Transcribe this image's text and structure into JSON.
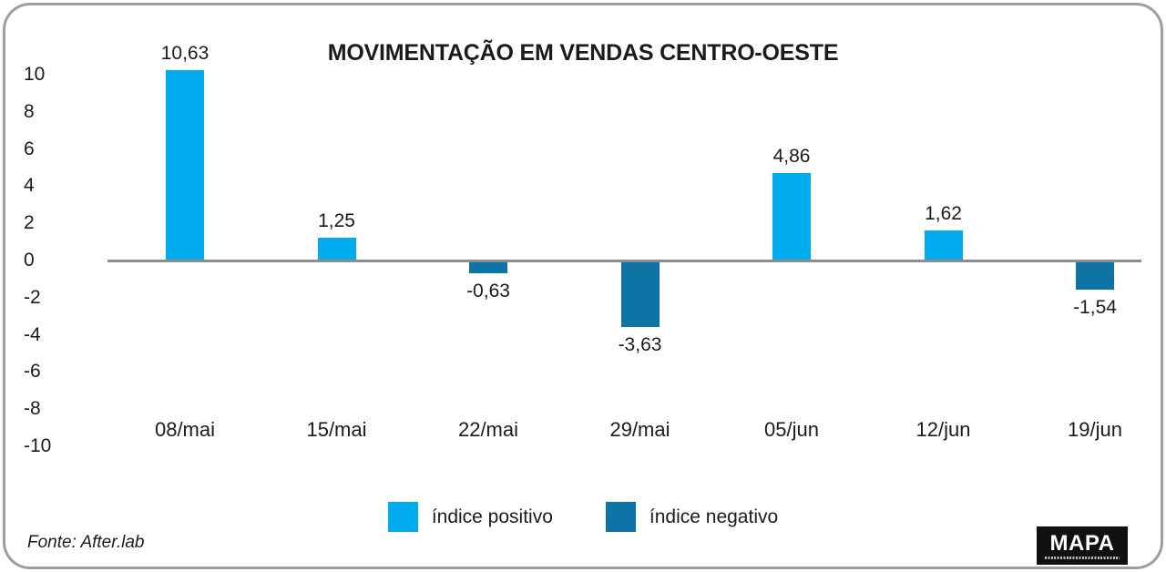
{
  "title": "MOVIMENTAÇÃO EM VENDAS CENTRO-OESTE",
  "chart_data": {
    "type": "bar",
    "categories": [
      "08/mai",
      "15/mai",
      "22/mai",
      "29/mai",
      "05/jun",
      "12/jun",
      "19/jun"
    ],
    "values": [
      10.63,
      1.25,
      -0.63,
      -3.63,
      4.86,
      1.62,
      -1.54
    ],
    "value_labels": [
      "10,63",
      "1,25",
      "-0,63",
      "-3,63",
      "4,86",
      "1,62",
      "-1,54"
    ],
    "title": "MOVIMENTAÇÃO EM VENDAS CENTRO-OESTE",
    "xlabel": "",
    "ylabel": "",
    "y_ticks": [
      10,
      8,
      6,
      4,
      2,
      0,
      -2,
      -4,
      -6,
      -8,
      -10
    ],
    "ylim": [
      -10,
      10
    ],
    "grid": false,
    "legend_position": "bottom",
    "positive_color": "#00ACEE",
    "negative_color": "#0E74A5",
    "axis_color": "#8C8C8C"
  },
  "legend": {
    "items": [
      {
        "label": "índice positivo",
        "color": "#00ACEE"
      },
      {
        "label": "índice negativo",
        "color": "#0E74A5"
      }
    ]
  },
  "footer": {
    "source": "Fonte: After.lab",
    "logo_text": "MAPA"
  }
}
